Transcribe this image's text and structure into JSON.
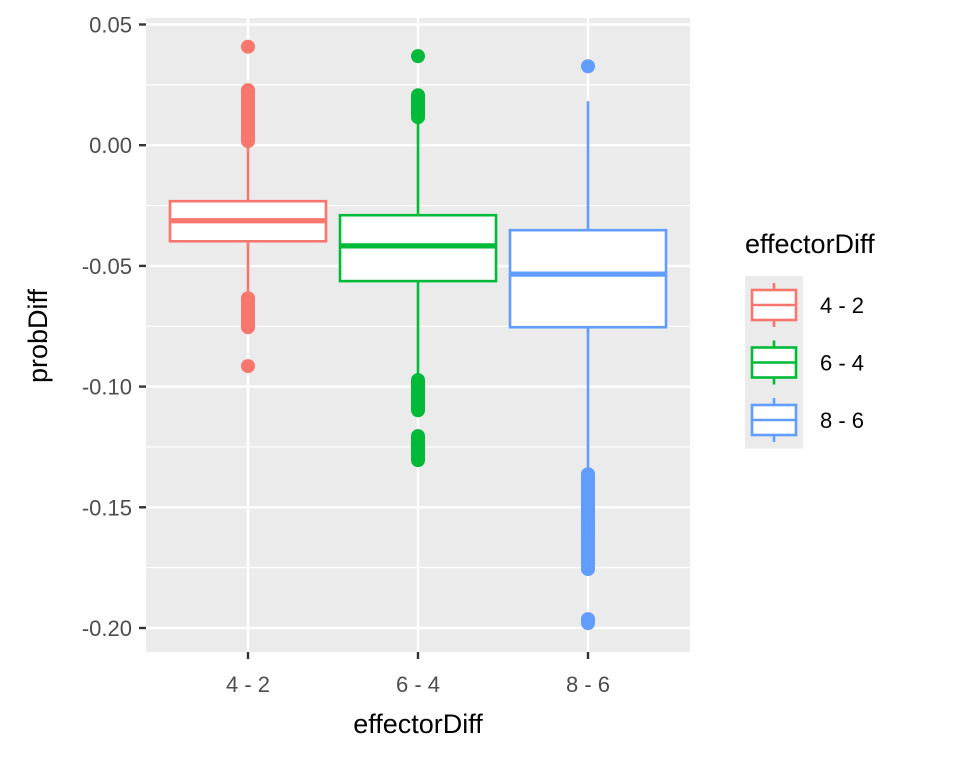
{
  "chart_data": {
    "type": "boxplot",
    "title": "",
    "xlabel": "effectorDiff",
    "ylabel": "probDiff",
    "ylim": [
      -0.21,
      0.054
    ],
    "y_ticks": [
      0.05,
      0.0,
      -0.05,
      -0.1,
      -0.15,
      -0.2
    ],
    "y_tick_labels": [
      "0.05",
      "0.00",
      "-0.05",
      "-0.10",
      "-0.15",
      "-0.20"
    ],
    "grid": true,
    "categories": [
      "4 - 2",
      "6 - 4",
      "8 - 6"
    ],
    "legend": {
      "title": "effectorDiff",
      "position": "right",
      "entries": [
        "4 - 2",
        "6 - 4",
        "8 - 6"
      ]
    },
    "series": [
      {
        "name": "4 - 2",
        "color": "#F8766D",
        "q1": -0.0398,
        "median": -0.0313,
        "q3": -0.0232,
        "whisker_low": -0.062,
        "whisker_high": 0.0,
        "outliers": [
          0.0408,
          0.0228,
          0.02,
          0.017,
          0.014,
          0.011,
          0.008,
          0.005,
          0.0017,
          -0.0634,
          -0.066,
          -0.069,
          -0.072,
          -0.0754,
          -0.0915
        ]
      },
      {
        "name": "6 - 4",
        "color": "#00BA38",
        "q1": -0.0563,
        "median": -0.0417,
        "q3": -0.029,
        "whisker_low": -0.0955,
        "whisker_high": 0.0104,
        "outliers": [
          0.0369,
          0.0207,
          0.018,
          0.0145,
          0.0116,
          -0.0973,
          -0.1,
          -0.103,
          -0.106,
          -0.1098,
          -0.1205,
          -0.1235,
          -0.127,
          -0.1305
        ]
      },
      {
        "name": "8 - 6",
        "color": "#619CFF",
        "q1": -0.0754,
        "median": -0.0534,
        "q3": -0.0352,
        "whisker_low": -0.1338,
        "whisker_high": 0.0182,
        "outliers": [
          0.0327,
          -0.1363,
          -0.14,
          -0.144,
          -0.148,
          -0.152,
          -0.156,
          -0.16,
          -0.164,
          -0.168,
          -0.172,
          -0.1756,
          -0.1963,
          -0.198
        ]
      }
    ]
  }
}
